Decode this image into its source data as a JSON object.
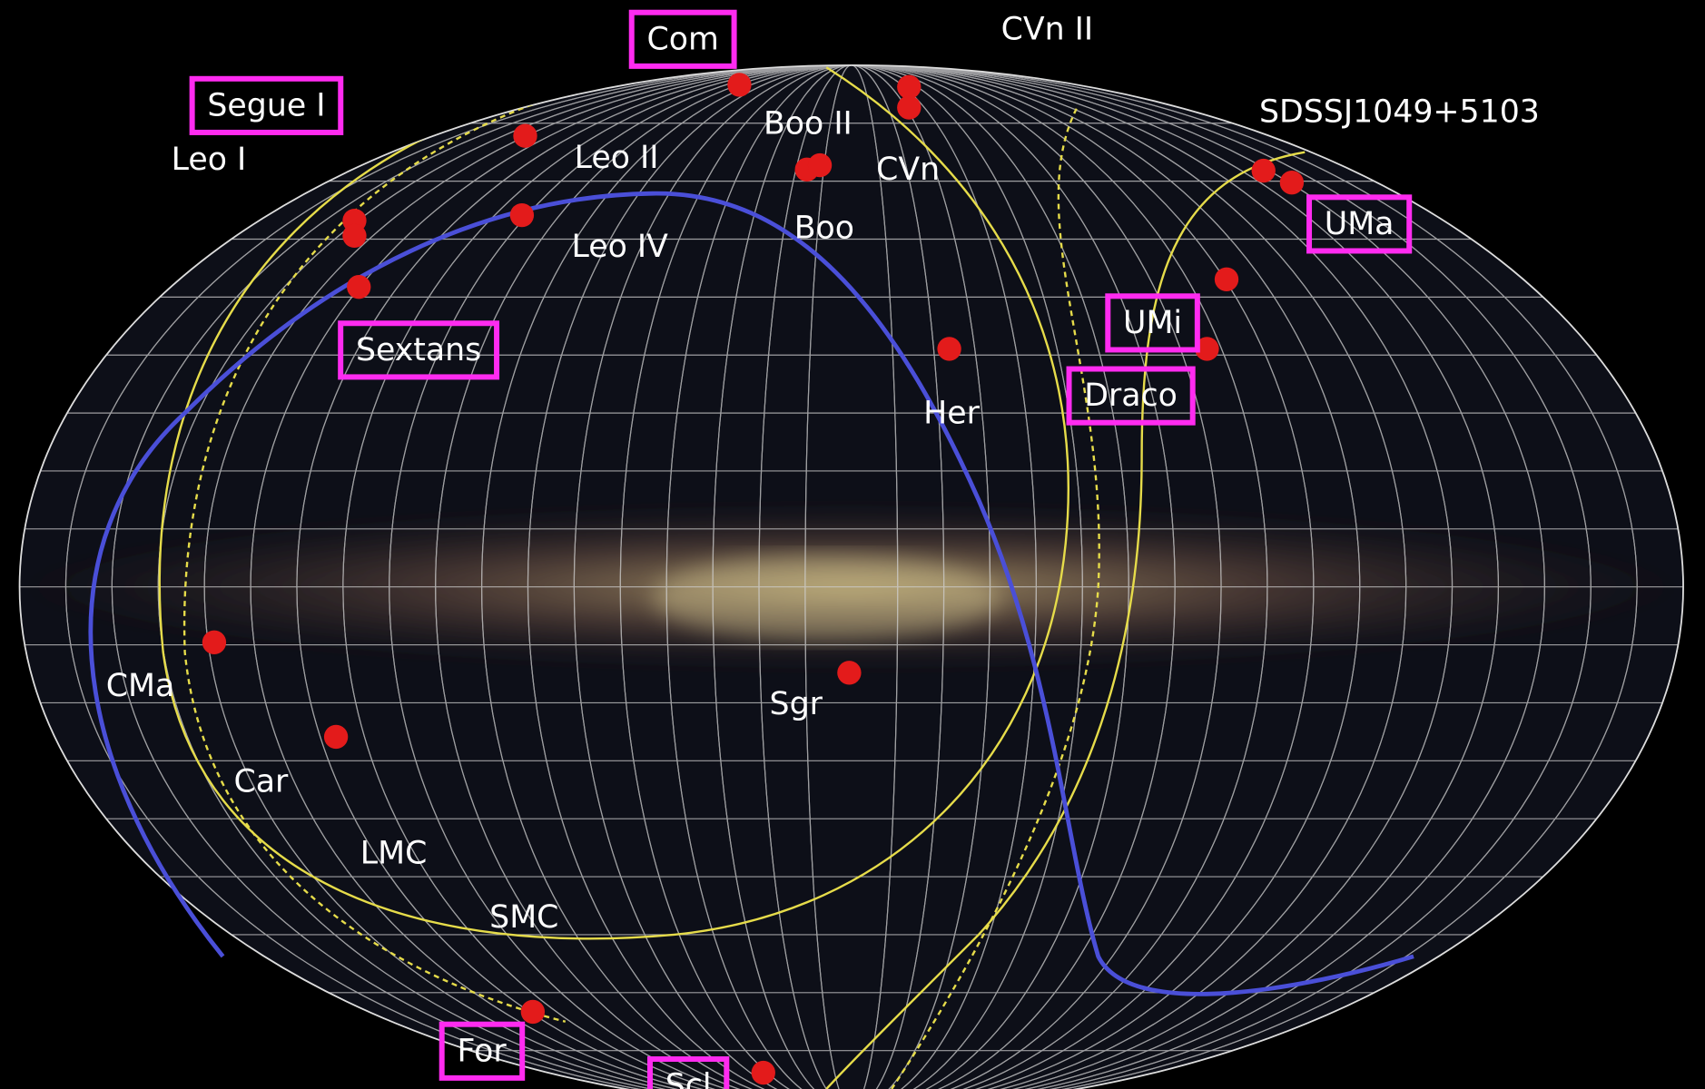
{
  "labels": [
    "Com",
    "CVn II",
    "Segue I",
    "Leo I",
    "Leo II",
    "Boo II",
    "CVn",
    "Boo",
    "Leo IV",
    "SDSSJ1049+5103",
    "UMa",
    "UMi",
    "Draco",
    "Sextans",
    "Her",
    "CMa",
    "Sgr",
    "Car",
    "LMC",
    "SMC",
    "For",
    "Scl"
  ]
}
